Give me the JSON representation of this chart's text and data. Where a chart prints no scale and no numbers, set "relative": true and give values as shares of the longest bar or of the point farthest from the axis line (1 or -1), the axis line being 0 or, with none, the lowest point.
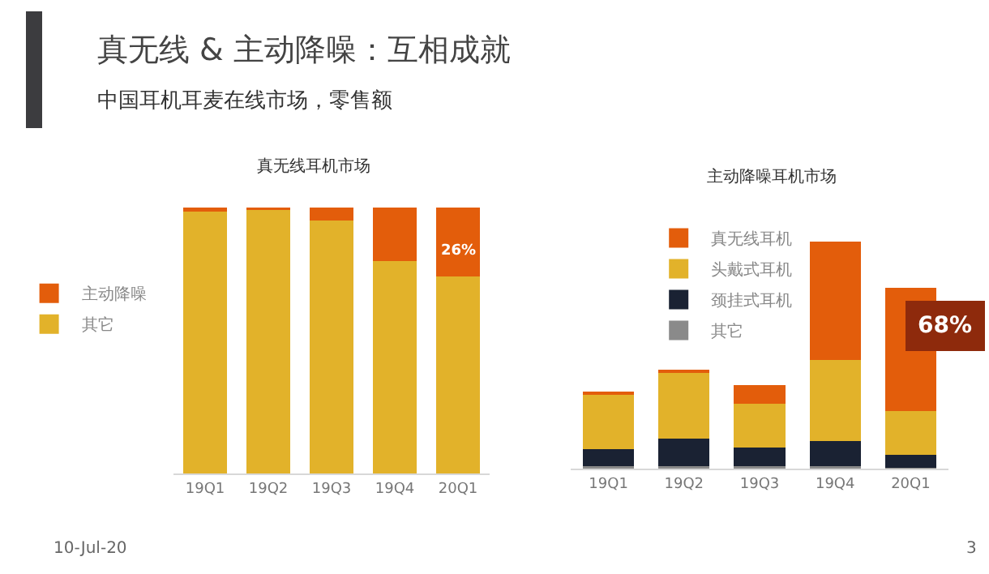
{
  "chart_data": [
    {
      "type": "other",
      "title": "真无线 & 主动降噪：互相成就",
      "subtitle": "中国耳机耳麦在线市场，零售额",
      "annotations": [
        "10-Jul-20",
        "3"
      ]
    },
    {
      "type": "bar",
      "title": "真无线耳机市场",
      "categories": [
        "19Q1",
        "19Q2",
        "19Q3",
        "19Q4",
        "20Q1"
      ],
      "stacked": true,
      "relative": true,
      "legend": "left",
      "series": [
        {
          "name": "其它",
          "color": "#e2b22a",
          "values": [
            0.985,
            0.99,
            0.95,
            0.8,
            0.74
          ]
        },
        {
          "name": "主动降噪",
          "color": "#e35d0b",
          "values": [
            0.015,
            0.01,
            0.05,
            0.2,
            0.26
          ]
        }
      ],
      "annotations": [
        "26%"
      ]
    },
    {
      "type": "bar",
      "title": "主动降噪耳机市场",
      "categories": [
        "19Q1",
        "19Q2",
        "19Q3",
        "19Q4",
        "20Q1"
      ],
      "stacked": true,
      "relative": true,
      "legend": "top left",
      "series": [
        {
          "name": "其它",
          "color": "#8a8a8a",
          "values": [
            0.01,
            0.01,
            0.01,
            0.01,
            0.005
          ]
        },
        {
          "name": "颈挂式耳机",
          "color": "#1a2233",
          "values": [
            0.076,
            0.121,
            0.083,
            0.11,
            0.057
          ]
        },
        {
          "name": "头戴式耳机",
          "color": "#e2b22a",
          "values": [
            0.24,
            0.29,
            0.193,
            0.36,
            0.19
          ]
        },
        {
          "name": "真无线耳机",
          "color": "#e35d0b",
          "values": [
            0.012,
            0.014,
            0.081,
            0.52,
            0.543
          ]
        }
      ],
      "annotations": [
        "68%"
      ]
    }
  ]
}
